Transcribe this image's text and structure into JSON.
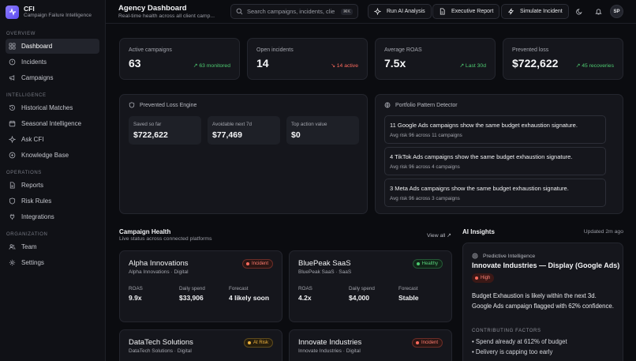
{
  "brand": {
    "title": "CFI",
    "subtitle": "Campaign Failure Intelligence"
  },
  "sidebar": {
    "sections": [
      {
        "title": "OVERVIEW",
        "items": [
          {
            "label": "Dashboard",
            "icon": "grid-icon",
            "active": true
          },
          {
            "label": "Incidents",
            "icon": "alert-circle-icon"
          },
          {
            "label": "Campaigns",
            "icon": "megaphone-icon"
          }
        ]
      },
      {
        "title": "INTELLIGENCE",
        "items": [
          {
            "label": "Historical Matches",
            "icon": "history-icon"
          },
          {
            "label": "Seasonal Intelligence",
            "icon": "calendar-icon"
          },
          {
            "label": "Ask CFI",
            "icon": "sparkle-icon"
          },
          {
            "label": "Knowledge Base",
            "icon": "book-icon"
          }
        ]
      },
      {
        "title": "OPERATIONS",
        "items": [
          {
            "label": "Reports",
            "icon": "file-icon"
          },
          {
            "label": "Risk Rules",
            "icon": "shield-icon"
          },
          {
            "label": "Integrations",
            "icon": "plug-icon"
          }
        ]
      },
      {
        "title": "ORGANIZATION",
        "items": [
          {
            "label": "Team",
            "icon": "users-icon"
          },
          {
            "label": "Settings",
            "icon": "gear-icon"
          }
        ]
      }
    ]
  },
  "header": {
    "title": "Agency Dashboard",
    "subtitle": "Real-time health across all client camp...",
    "search_placeholder": "Search campaigns, incidents, clie",
    "search_shortcut": "⌘K",
    "buttons": {
      "ai": "Run AI Analysis",
      "report": "Executive Report",
      "simulate": "Simulate Incident"
    },
    "avatar": "SP"
  },
  "stats": [
    {
      "label": "Active campaigns",
      "value": "63",
      "trend": "63 monitored",
      "trend_color": "green"
    },
    {
      "label": "Open incidents",
      "value": "14",
      "trend": "14 active",
      "trend_color": "red"
    },
    {
      "label": "Average ROAS",
      "value": "7.5x",
      "trend": "Last 30d",
      "trend_color": "green"
    },
    {
      "label": "Prevented loss",
      "value": "$722,622",
      "trend": "45 recoveries",
      "trend_color": "green"
    }
  ],
  "prevented_engine": {
    "title": "Prevented Loss Engine",
    "tiles": [
      {
        "label": "Saved so far",
        "value": "$722,622"
      },
      {
        "label": "Avoidable next 7d",
        "value": "$77,469"
      },
      {
        "label": "Top action value",
        "value": "$0"
      }
    ]
  },
  "pattern_detector": {
    "title": "Portfolio Pattern Detector",
    "items": [
      {
        "title": "11 Google Ads campaigns show the same budget exhaustion signature.",
        "sub": "Avg risk 96 across 11 campaigns"
      },
      {
        "title": "4 TikTok Ads campaigns show the same budget exhaustion signature.",
        "sub": "Avg risk 96 across 4 campaigns"
      },
      {
        "title": "3 Meta Ads campaigns show the same budget exhaustion signature.",
        "sub": "Avg risk 96 across 3 campaigns"
      }
    ]
  },
  "campaign_health": {
    "title": "Campaign Health",
    "subtitle": "Live status across connected platforms",
    "view_all": "View all ↗",
    "metric_labels": {
      "roas": "ROAS",
      "spend": "Daily spend",
      "forecast": "Forecast"
    },
    "cards": [
      {
        "name": "Alpha Innovations",
        "sub": "Alpha Innovations · Digital",
        "status": "Incident",
        "roas": "9.9x",
        "spend": "$33,906",
        "forecast": "4 likely soon",
        "forecast_color": "amber"
      },
      {
        "name": "BluePeak SaaS",
        "sub": "BluePeak SaaS · SaaS",
        "status": "Healthy",
        "roas": "4.2x",
        "spend": "$4,000",
        "forecast": "Stable",
        "forecast_color": "green"
      },
      {
        "name": "DataTech Solutions",
        "sub": "DataTech Solutions · Digital",
        "status": "At Risk"
      },
      {
        "name": "Innovate Industries",
        "sub": "Innovate Industries · Digital",
        "status": "Incident"
      }
    ]
  },
  "ai_insights": {
    "title": "AI Insights",
    "updated": "Updated 2m ago",
    "kicker": "Predictive Intelligence",
    "card_title": "Innovate Industries — Display (Google Ads)",
    "severity": "High",
    "body": "Budget Exhaustion is likely within the next 3d. Google Ads campaign flagged with 62% confidence.",
    "factors_title": "CONTRIBUTING FACTORS",
    "factors": [
      "• Spend already at 612% of budget",
      "• Delivery is capping too early"
    ]
  }
}
